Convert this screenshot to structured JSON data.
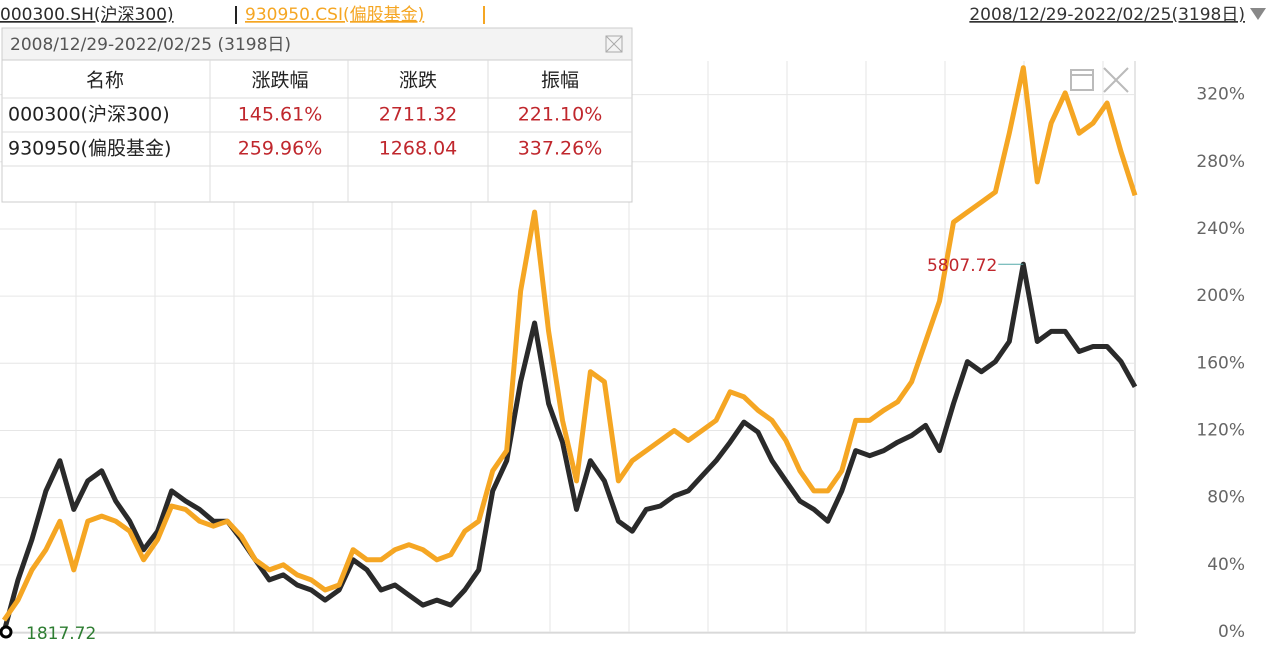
{
  "header": {
    "range": "2008/12/29-2022/02/25(3198日)"
  },
  "table": {
    "title": "2008/12/29-2022/02/25 (3198日)",
    "columns": [
      "名称",
      "涨跌幅",
      "涨跌",
      "振幅"
    ],
    "rows": [
      [
        "000300(沪深300)",
        "145.61%",
        "2711.32",
        "221.10%"
      ],
      [
        "930950(偏股基金)",
        "259.96%",
        "1268.04",
        "337.26%"
      ]
    ]
  },
  "chart_data": {
    "type": "line",
    "series": [
      {
        "name": "000300.SH(沪深300)",
        "color": "#2a2a2a",
        "values": [
          0,
          31,
          55,
          84,
          102,
          73,
          90,
          96,
          78,
          66,
          49,
          60,
          84,
          78,
          73,
          66,
          66,
          55,
          43,
          31,
          34,
          28,
          25,
          19,
          25,
          43,
          37,
          25,
          28,
          22,
          16,
          19,
          16,
          25,
          37,
          84,
          102,
          149,
          184,
          136,
          113,
          73,
          102,
          90,
          66,
          60,
          73,
          75,
          81,
          84,
          93,
          102,
          113,
          125,
          119,
          102,
          90,
          78,
          73,
          66,
          84,
          108,
          105,
          108,
          113,
          117,
          123,
          108,
          136,
          161,
          155,
          161,
          173,
          219,
          173,
          179,
          179,
          167,
          170,
          170,
          161,
          146
        ]
      },
      {
        "name": "930950.CSI(偏股基金)",
        "color": "#f5a623",
        "values": [
          7,
          19,
          37,
          49,
          66,
          37,
          66,
          69,
          66,
          60,
          43,
          55,
          75,
          73,
          66,
          63,
          66,
          57,
          43,
          37,
          40,
          34,
          31,
          25,
          28,
          49,
          43,
          43,
          49,
          52,
          49,
          43,
          46,
          60,
          66,
          96,
          108,
          203,
          250,
          179,
          126,
          90,
          155,
          149,
          90,
          102,
          108,
          114,
          120,
          114,
          120,
          126,
          143,
          140,
          132,
          126,
          114,
          96,
          84,
          84,
          96,
          126,
          126,
          132,
          137,
          149,
          173,
          197,
          244,
          250,
          256,
          262,
          297,
          336,
          268,
          303,
          321,
          297,
          303,
          315,
          286,
          260
        ]
      }
    ],
    "ylim": [
      0,
      340
    ],
    "yticks": [
      {
        "value": 0,
        "label": "0%"
      },
      {
        "value": 40,
        "label": "40%"
      },
      {
        "value": 80,
        "label": "80%"
      },
      {
        "value": 120,
        "label": "120%"
      },
      {
        "value": 160,
        "label": "160%"
      },
      {
        "value": 200,
        "label": "200%"
      },
      {
        "value": 240,
        "label": "240%"
      },
      {
        "value": 280,
        "label": "280%"
      },
      {
        "value": 320,
        "label": "320%"
      }
    ],
    "grid": true,
    "annotations": [
      {
        "text": "5807.72",
        "color": "#c0272d"
      },
      {
        "text": "1817.72",
        "color": "#2e7d32"
      }
    ]
  }
}
